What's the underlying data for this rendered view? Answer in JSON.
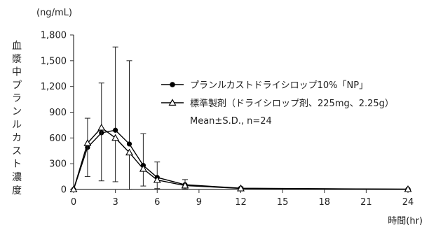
{
  "chart_data": {
    "type": "line",
    "y_unit": "(ng/mL)",
    "ylabel": "血漿中プランルカスト濃度",
    "xlabel": "時間(hr)",
    "xlim": [
      0,
      24
    ],
    "ylim": [
      0,
      1800
    ],
    "x_ticks": [
      "0",
      "3",
      "6",
      "9",
      "12",
      "15",
      "18",
      "21",
      "24"
    ],
    "y_ticks": [
      "0",
      "300",
      "600",
      "900",
      "1,200",
      "1,500",
      "1,800"
    ],
    "grid": false,
    "legend_position": "center-right",
    "note": "Mean±S.D., n=24",
    "series": [
      {
        "name": "プランルカストドライシロップ10%「NP」",
        "marker": "filled-circle",
        "x": [
          0,
          1,
          2,
          3,
          4,
          5,
          6,
          8,
          12,
          24
        ],
        "y": [
          0,
          490,
          660,
          690,
          530,
          280,
          140,
          55,
          15,
          3
        ],
        "sd": [
          0,
          340,
          580,
          970,
          970,
          370,
          180,
          60,
          12,
          2
        ],
        "sd_direction": "up"
      },
      {
        "name": "標準製剤（ドライシロップ剤、225mg、2.25g）",
        "marker": "open-triangle",
        "x": [
          0,
          1,
          2,
          3,
          4,
          5,
          6,
          8,
          12,
          24
        ],
        "y": [
          0,
          540,
          720,
          600,
          430,
          240,
          110,
          45,
          12,
          3
        ],
        "sd": [
          0,
          390,
          620,
          510,
          430,
          200,
          100,
          40,
          10,
          2
        ],
        "sd_direction": "down"
      }
    ]
  }
}
